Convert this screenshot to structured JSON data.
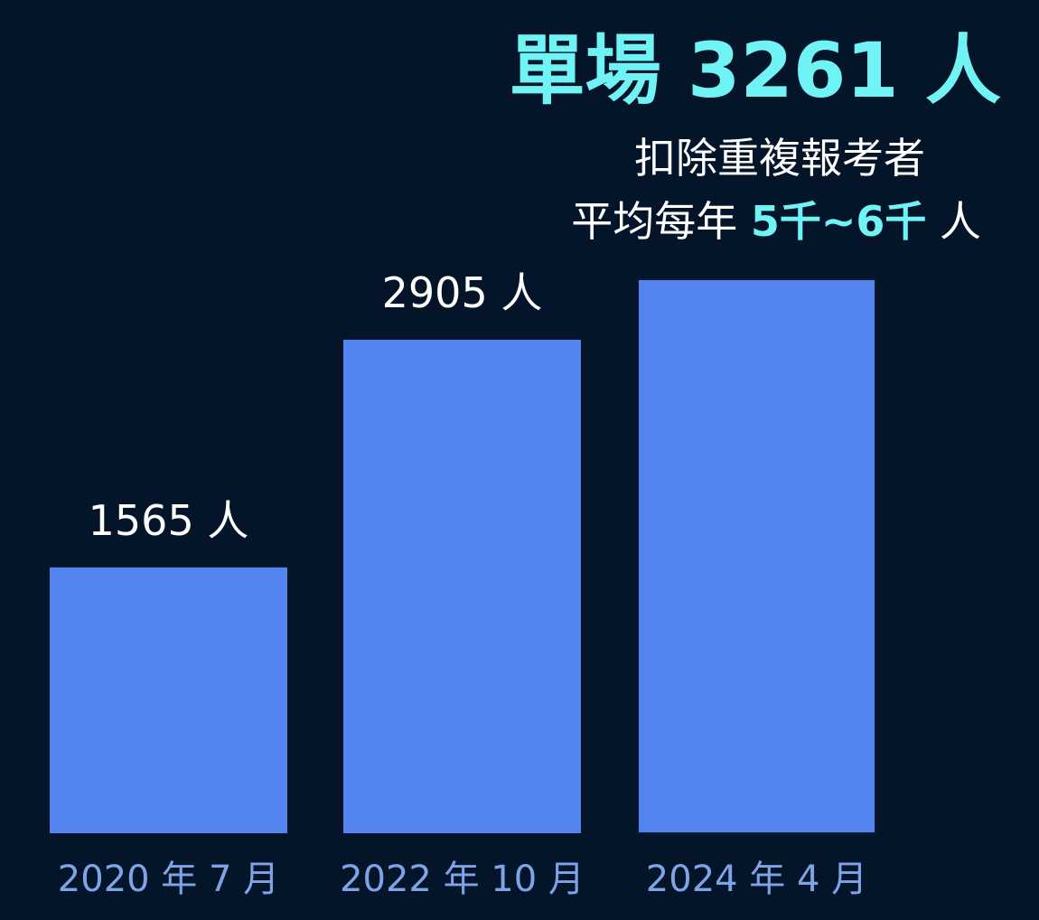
{
  "headline": {
    "prefix": "單場",
    "number": "3261",
    "suffix": "人"
  },
  "note": {
    "line1": "扣除重複報考者",
    "line2_prefix": "平均每年",
    "line2_value": "5千~6千",
    "line2_suffix": "人"
  },
  "colors": {
    "background": "#04152a",
    "bar": "#5383ec",
    "accent": "#6ff3f5",
    "category_label": "#7ea3e6",
    "value_label": "#ffffff"
  },
  "chart_data": {
    "type": "bar",
    "categories": [
      "2020 年 7 月",
      "2022 年 10 月",
      "2024 年 4 月"
    ],
    "values": [
      1565,
      2905,
      3261
    ],
    "data_labels": [
      "1565 人",
      "2905 人",
      ""
    ],
    "ylim": [
      0,
      3261
    ],
    "grid": false,
    "legend": "none"
  }
}
